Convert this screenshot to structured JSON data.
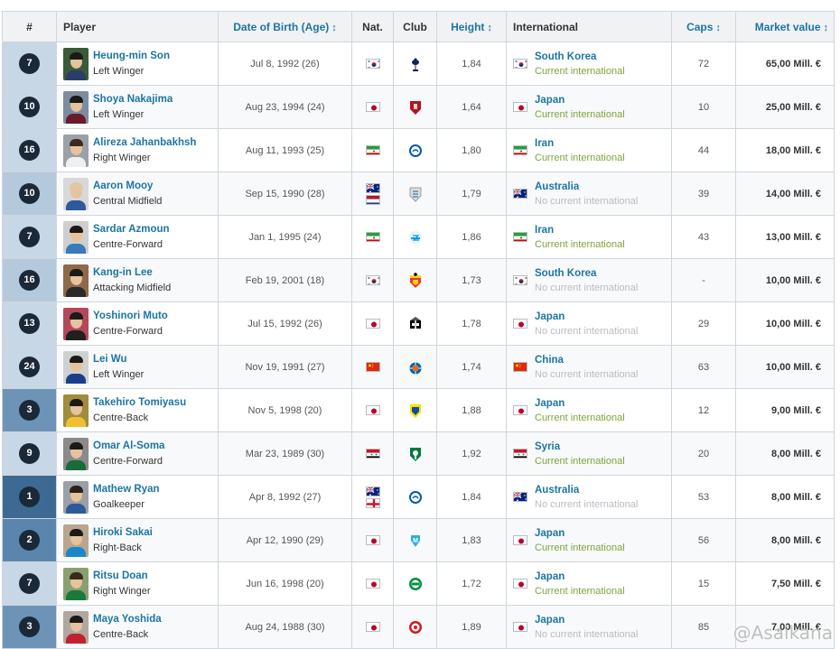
{
  "columns": {
    "number": "#",
    "player": "Player",
    "dob": "Date of Birth (Age)",
    "nat": "Nat.",
    "club": "Club",
    "height": "Height",
    "international": "International",
    "caps": "Caps",
    "value": "Market value"
  },
  "sort_arrow": "↕",
  "rows": [
    {
      "num": "7",
      "name": "Heung-min Son",
      "position": "Left Winger",
      "dob": "Jul 8, 1992 (26)",
      "nat_flags": [
        "korea"
      ],
      "club_icon": "tottenham-crest-icon",
      "height": "1,84",
      "intl_country": "South Korea",
      "intl_flag": "korea",
      "intl_status": "Current international",
      "current": true,
      "caps": "72",
      "value": "65,00 Mill. €"
    },
    {
      "num": "10",
      "name": "Shoya Nakajima",
      "position": "Left Winger",
      "dob": "Aug 23, 1994 (24)",
      "nat_flags": [
        "japan"
      ],
      "club_icon": "al-duhail-crest-icon",
      "height": "1,64",
      "intl_country": "Japan",
      "intl_flag": "japan",
      "intl_status": "Current international",
      "current": true,
      "caps": "10",
      "value": "25,00 Mill. €"
    },
    {
      "num": "16",
      "name": "Alireza Jahanbakhsh",
      "position": "Right Winger",
      "dob": "Aug 11, 1993 (25)",
      "nat_flags": [
        "iran"
      ],
      "club_icon": "brighton-crest-icon",
      "height": "1,80",
      "intl_country": "Iran",
      "intl_flag": "iran",
      "intl_status": "Current international",
      "current": true,
      "caps": "44",
      "value": "18,00 Mill. €"
    },
    {
      "num": "10",
      "name": "Aaron Mooy",
      "position": "Central Midfield",
      "dob": "Sep 15, 1990 (28)",
      "nat_flags": [
        "australia",
        "netherlands"
      ],
      "club_icon": "huddersfield-crest-icon",
      "height": "1,79",
      "intl_country": "Australia",
      "intl_flag": "australia",
      "intl_status": "No current international",
      "current": false,
      "caps": "39",
      "value": "14,00 Mill. €"
    },
    {
      "num": "7",
      "name": "Sardar Azmoun",
      "position": "Centre-Forward",
      "dob": "Jan 1, 1995 (24)",
      "nat_flags": [
        "iran"
      ],
      "club_icon": "zenit-crest-icon",
      "height": "1,86",
      "intl_country": "Iran",
      "intl_flag": "iran",
      "intl_status": "Current international",
      "current": true,
      "caps": "43",
      "value": "13,00 Mill. €"
    },
    {
      "num": "16",
      "name": "Kang-in Lee",
      "position": "Attacking Midfield",
      "dob": "Feb 19, 2001 (18)",
      "nat_flags": [
        "korea"
      ],
      "club_icon": "valencia-crest-icon",
      "height": "1,73",
      "intl_country": "South Korea",
      "intl_flag": "korea",
      "intl_status": "No current international",
      "current": false,
      "caps": "-",
      "value": "10,00 Mill. €"
    },
    {
      "num": "13",
      "name": "Yoshinori Muto",
      "position": "Centre-Forward",
      "dob": "Jul 15, 1992 (26)",
      "nat_flags": [
        "japan"
      ],
      "club_icon": "newcastle-crest-icon",
      "height": "1,78",
      "intl_country": "Japan",
      "intl_flag": "japan",
      "intl_status": "No current international",
      "current": false,
      "caps": "29",
      "value": "10,00 Mill. €"
    },
    {
      "num": "24",
      "name": "Lei Wu",
      "position": "Left Winger",
      "dob": "Nov 19, 1991 (27)",
      "nat_flags": [
        "china"
      ],
      "club_icon": "espanyol-crest-icon",
      "height": "1,74",
      "intl_country": "China",
      "intl_flag": "china",
      "intl_status": "No current international",
      "current": false,
      "caps": "63",
      "value": "10,00 Mill. €"
    },
    {
      "num": "3",
      "name": "Takehiro Tomiyasu",
      "position": "Centre-Back",
      "dob": "Nov 5, 1998 (20)",
      "nat_flags": [
        "japan"
      ],
      "club_icon": "sint-truiden-crest-icon",
      "height": "1,88",
      "intl_country": "Japan",
      "intl_flag": "japan",
      "intl_status": "Current international",
      "current": true,
      "caps": "12",
      "value": "9,00 Mill. €"
    },
    {
      "num": "9",
      "name": "Omar Al-Soma",
      "position": "Centre-Forward",
      "dob": "Mar 23, 1989 (30)",
      "nat_flags": [
        "syria"
      ],
      "club_icon": "al-ahli-crest-icon",
      "height": "1,92",
      "intl_country": "Syria",
      "intl_flag": "syria",
      "intl_status": "Current international",
      "current": true,
      "caps": "20",
      "value": "8,00 Mill. €"
    },
    {
      "num": "1",
      "name": "Mathew Ryan",
      "position": "Goalkeeper",
      "dob": "Apr 8, 1992 (27)",
      "nat_flags": [
        "australia",
        "england"
      ],
      "club_icon": "brighton-crest-icon",
      "height": "1,84",
      "intl_country": "Australia",
      "intl_flag": "australia",
      "intl_status": "No current international",
      "current": false,
      "caps": "53",
      "value": "8,00 Mill. €"
    },
    {
      "num": "2",
      "name": "Hiroki Sakai",
      "position": "Right-Back",
      "dob": "Apr 12, 1990 (29)",
      "nat_flags": [
        "japan"
      ],
      "club_icon": "marseille-crest-icon",
      "height": "1,83",
      "intl_country": "Japan",
      "intl_flag": "japan",
      "intl_status": "Current international",
      "current": true,
      "caps": "56",
      "value": "8,00 Mill. €"
    },
    {
      "num": "7",
      "name": "Ritsu Doan",
      "position": "Right Winger",
      "dob": "Jun 16, 1998 (20)",
      "nat_flags": [
        "japan"
      ],
      "club_icon": "groningen-crest-icon",
      "height": "1,72",
      "intl_country": "Japan",
      "intl_flag": "japan",
      "intl_status": "Current international",
      "current": true,
      "caps": "15",
      "value": "7,50 Mill. €"
    },
    {
      "num": "3",
      "name": "Maya Yoshida",
      "position": "Centre-Back",
      "dob": "Aug 24, 1988 (30)",
      "nat_flags": [
        "japan"
      ],
      "club_icon": "southampton-crest-icon",
      "height": "1,89",
      "intl_country": "Japan",
      "intl_flag": "japan",
      "intl_status": "No current international",
      "current": false,
      "caps": "85",
      "value": "7,00 Mill. €"
    }
  ],
  "watermark": "@Asaikana",
  "colors": {
    "link": "#1d75a3",
    "current": "#7ba63a",
    "no_current": "#b7bcc2",
    "badge": "#1a2838",
    "header_bg": "#f0f2f4"
  }
}
